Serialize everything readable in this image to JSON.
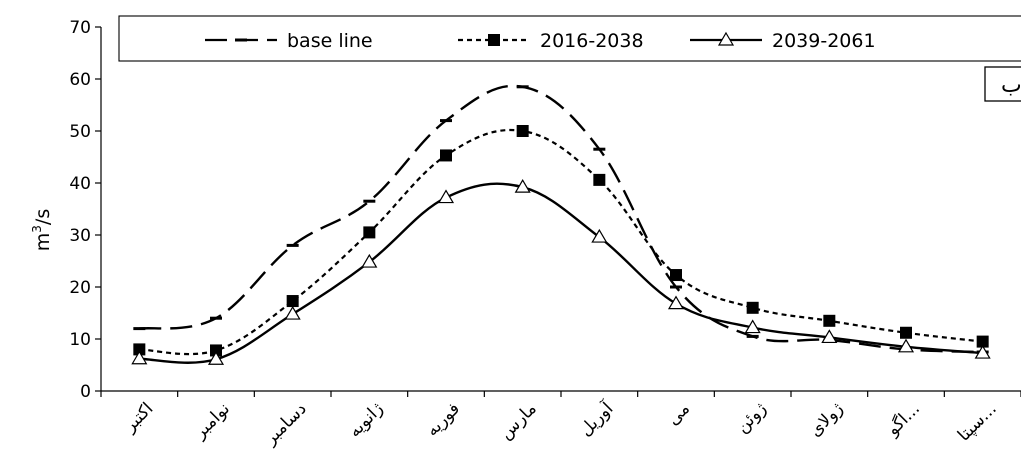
{
  "chart_data": {
    "type": "line",
    "title": "",
    "panel_label": "ب",
    "ylabel": "m³/s",
    "ylabel_base": "m",
    "ylabel_sup": "3",
    "ylabel_rest": "/s",
    "xlabel": "",
    "ylim": [
      0,
      70
    ],
    "yticks": [
      0,
      10,
      20,
      30,
      40,
      50,
      60,
      70
    ],
    "grid": false,
    "legend_position": "top",
    "categories": [
      "اکتبر",
      "نوامبر",
      "دسامبر",
      "ژانویه",
      "فوریه",
      "مارس",
      "آوریل",
      "می",
      "ژوئن",
      "ژولای",
      "اگو...",
      "سپتا..."
    ],
    "series": [
      {
        "name": "base line",
        "style": "dashed",
        "marker": "dash",
        "color": "#000000",
        "values": [
          12,
          14,
          28,
          36.5,
          52,
          58.5,
          46.5,
          20,
          10.5,
          9.8,
          8,
          7.5
        ]
      },
      {
        "name": "2016-2038",
        "style": "dotted",
        "marker": "square",
        "color": "#000000",
        "values": [
          8,
          7.8,
          17.3,
          30.5,
          45.3,
          50,
          40.6,
          22.3,
          16,
          13.5,
          11.2,
          9.5
        ]
      },
      {
        "name": "2039-2061",
        "style": "solid",
        "marker": "triangle",
        "color": "#000000",
        "values": [
          6.2,
          6.1,
          14.8,
          24.8,
          37.2,
          39.2,
          29.6,
          16.8,
          12.2,
          10.3,
          8.5,
          7.3
        ]
      }
    ]
  }
}
